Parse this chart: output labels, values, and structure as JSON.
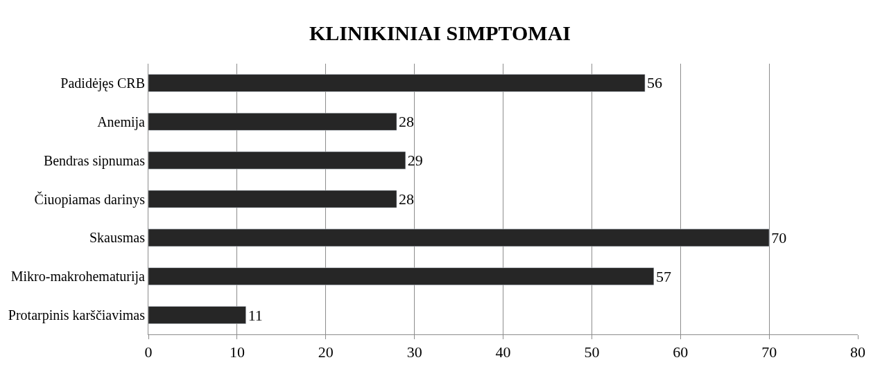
{
  "chart_data": {
    "type": "bar",
    "orientation": "horizontal",
    "title": "KLINIKINIAI SIMPTOMAI",
    "categories": [
      "Padidėjęs CRB",
      "Anemija",
      "Bendras sipnumas",
      "Čiuopiamas darinys",
      "Skausmas",
      "Mikro-makrohematurija",
      "Protarpinis karščiavimas"
    ],
    "values": [
      56,
      28,
      29,
      28,
      70,
      57,
      11
    ],
    "color": "#262626",
    "xlim": [
      0,
      80
    ],
    "xticks": [
      0,
      10,
      20,
      30,
      40,
      50,
      60,
      70,
      80
    ],
    "grid": "x",
    "data_labels": true
  }
}
